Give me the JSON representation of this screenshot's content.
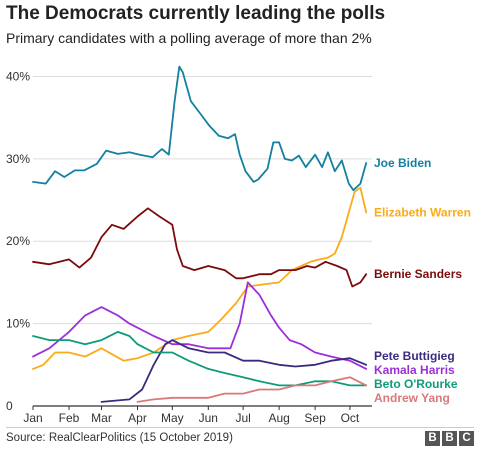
{
  "header": {
    "title": "The Democrats currently leading the polls",
    "subtitle": "Primary candidates with a polling average of more than 2%"
  },
  "footer": {
    "source": "Source: RealClearPolitics (15 October 2019)",
    "logo_letters": [
      "B",
      "B",
      "C"
    ]
  },
  "chart_data": {
    "type": "line",
    "title": "The Democrats currently leading the polls",
    "subtitle": "Primary candidates with a polling average of more than 2%",
    "xlabel": "",
    "ylabel": "",
    "x_range": [
      "2019-01-01",
      "2019-10-20"
    ],
    "x_ticks": [
      {
        "date": "2019-01-01",
        "label": "Jan"
      },
      {
        "date": "2019-02-01",
        "label": "Feb"
      },
      {
        "date": "2019-03-01",
        "label": "Mar"
      },
      {
        "date": "2019-04-01",
        "label": "Apr"
      },
      {
        "date": "2019-05-01",
        "label": "May"
      },
      {
        "date": "2019-06-01",
        "label": "Jun"
      },
      {
        "date": "2019-07-01",
        "label": "Jul"
      },
      {
        "date": "2019-08-01",
        "label": "Aug"
      },
      {
        "date": "2019-09-01",
        "label": "Sep"
      },
      {
        "date": "2019-10-01",
        "label": "Oct"
      }
    ],
    "y_ticks": [
      {
        "value": 0,
        "label": "0"
      },
      {
        "value": 10,
        "label": "10%"
      },
      {
        "value": 20,
        "label": "20%"
      },
      {
        "value": 30,
        "label": "30%"
      },
      {
        "value": 40,
        "label": "40%"
      }
    ],
    "ylim": [
      0,
      42
    ],
    "grid": true,
    "legend": "labels at right end of lines",
    "series": [
      {
        "name": "Joe Biden",
        "color": "#1380A1",
        "points": [
          [
            "2019-01-01",
            27.2
          ],
          [
            "2019-01-12",
            27.0
          ],
          [
            "2019-01-20",
            28.5
          ],
          [
            "2019-01-28",
            27.8
          ],
          [
            "2019-02-06",
            28.6
          ],
          [
            "2019-02-14",
            28.6
          ],
          [
            "2019-02-25",
            29.4
          ],
          [
            "2019-03-05",
            31.0
          ],
          [
            "2019-03-15",
            30.6
          ],
          [
            "2019-03-25",
            30.8
          ],
          [
            "2019-04-03",
            30.5
          ],
          [
            "2019-04-14",
            30.2
          ],
          [
            "2019-04-22",
            31.2
          ],
          [
            "2019-04-28",
            30.5
          ],
          [
            "2019-05-03",
            37.0
          ],
          [
            "2019-05-07",
            41.2
          ],
          [
            "2019-05-10",
            40.5
          ],
          [
            "2019-05-17",
            37.0
          ],
          [
            "2019-05-25",
            35.5
          ],
          [
            "2019-06-02",
            34.0
          ],
          [
            "2019-06-10",
            32.8
          ],
          [
            "2019-06-18",
            32.5
          ],
          [
            "2019-06-24",
            33.0
          ],
          [
            "2019-06-28",
            30.5
          ],
          [
            "2019-07-03",
            28.5
          ],
          [
            "2019-07-10",
            27.2
          ],
          [
            "2019-07-14",
            27.5
          ],
          [
            "2019-07-22",
            28.8
          ],
          [
            "2019-07-27",
            32.0
          ],
          [
            "2019-08-01",
            32.0
          ],
          [
            "2019-08-06",
            30.0
          ],
          [
            "2019-08-12",
            29.8
          ],
          [
            "2019-08-18",
            30.4
          ],
          [
            "2019-08-24",
            29.0
          ],
          [
            "2019-09-01",
            30.5
          ],
          [
            "2019-09-07",
            29.0
          ],
          [
            "2019-09-12",
            30.8
          ],
          [
            "2019-09-18",
            28.5
          ],
          [
            "2019-09-24",
            29.8
          ],
          [
            "2019-09-30",
            27.0
          ],
          [
            "2019-10-04",
            26.2
          ],
          [
            "2019-10-10",
            27.0
          ],
          [
            "2019-10-15",
            29.5
          ]
        ]
      },
      {
        "name": "Elizabeth Warren",
        "color": "#FAAB18",
        "points": [
          [
            "2019-01-01",
            4.5
          ],
          [
            "2019-01-10",
            5.0
          ],
          [
            "2019-01-20",
            6.5
          ],
          [
            "2019-02-01",
            6.5
          ],
          [
            "2019-02-15",
            6.0
          ],
          [
            "2019-03-01",
            7.0
          ],
          [
            "2019-03-20",
            5.5
          ],
          [
            "2019-04-01",
            5.8
          ],
          [
            "2019-04-15",
            6.5
          ],
          [
            "2019-05-01",
            8.0
          ],
          [
            "2019-05-15",
            8.5
          ],
          [
            "2019-06-01",
            9.0
          ],
          [
            "2019-06-12",
            10.5
          ],
          [
            "2019-06-25",
            12.5
          ],
          [
            "2019-07-05",
            14.5
          ],
          [
            "2019-07-20",
            14.8
          ],
          [
            "2019-08-01",
            15.0
          ],
          [
            "2019-08-12",
            16.5
          ],
          [
            "2019-08-20",
            17.0
          ],
          [
            "2019-08-28",
            17.5
          ],
          [
            "2019-09-05",
            17.8
          ],
          [
            "2019-09-12",
            18.0
          ],
          [
            "2019-09-18",
            18.5
          ],
          [
            "2019-09-24",
            20.5
          ],
          [
            "2019-09-30",
            23.5
          ],
          [
            "2019-10-05",
            26.0
          ],
          [
            "2019-10-10",
            26.5
          ],
          [
            "2019-10-15",
            23.5
          ]
        ]
      },
      {
        "name": "Bernie Sanders",
        "color": "#7B0B0B",
        "points": [
          [
            "2019-01-01",
            17.5
          ],
          [
            "2019-01-15",
            17.2
          ],
          [
            "2019-02-01",
            17.8
          ],
          [
            "2019-02-10",
            16.8
          ],
          [
            "2019-02-20",
            18.0
          ],
          [
            "2019-03-01",
            20.5
          ],
          [
            "2019-03-10",
            22.0
          ],
          [
            "2019-03-20",
            21.5
          ],
          [
            "2019-04-01",
            23.0
          ],
          [
            "2019-04-10",
            24.0
          ],
          [
            "2019-04-20",
            23.0
          ],
          [
            "2019-05-01",
            22.0
          ],
          [
            "2019-05-05",
            19.0
          ],
          [
            "2019-05-10",
            17.0
          ],
          [
            "2019-05-20",
            16.5
          ],
          [
            "2019-06-01",
            17.0
          ],
          [
            "2019-06-15",
            16.5
          ],
          [
            "2019-06-25",
            15.5
          ],
          [
            "2019-07-01",
            15.5
          ],
          [
            "2019-07-15",
            16.0
          ],
          [
            "2019-07-25",
            16.0
          ],
          [
            "2019-08-01",
            16.5
          ],
          [
            "2019-08-15",
            16.5
          ],
          [
            "2019-08-25",
            17.0
          ],
          [
            "2019-09-01",
            16.8
          ],
          [
            "2019-09-10",
            17.5
          ],
          [
            "2019-09-20",
            17.0
          ],
          [
            "2019-09-28",
            16.5
          ],
          [
            "2019-10-03",
            14.5
          ],
          [
            "2019-10-10",
            15.0
          ],
          [
            "2019-10-15",
            16.0
          ]
        ]
      },
      {
        "name": "Kamala Harris",
        "color": "#9B30D9",
        "points": [
          [
            "2019-01-01",
            6.0
          ],
          [
            "2019-01-15",
            7.0
          ],
          [
            "2019-02-01",
            9.0
          ],
          [
            "2019-02-15",
            11.0
          ],
          [
            "2019-03-01",
            12.0
          ],
          [
            "2019-03-15",
            11.0
          ],
          [
            "2019-03-25",
            10.0
          ],
          [
            "2019-04-01",
            9.5
          ],
          [
            "2019-04-15",
            8.5
          ],
          [
            "2019-05-01",
            7.5
          ],
          [
            "2019-05-15",
            7.5
          ],
          [
            "2019-06-01",
            7.0
          ],
          [
            "2019-06-20",
            7.0
          ],
          [
            "2019-06-28",
            10.0
          ],
          [
            "2019-07-05",
            15.0
          ],
          [
            "2019-07-15",
            13.5
          ],
          [
            "2019-07-25",
            11.0
          ],
          [
            "2019-08-01",
            9.5
          ],
          [
            "2019-08-10",
            8.0
          ],
          [
            "2019-08-20",
            7.5
          ],
          [
            "2019-09-01",
            6.5
          ],
          [
            "2019-09-15",
            6.0
          ],
          [
            "2019-10-01",
            5.5
          ],
          [
            "2019-10-15",
            4.5
          ]
        ]
      },
      {
        "name": "Pete Buttigieg",
        "color": "#3B2A7E",
        "points": [
          [
            "2019-03-01",
            0.5
          ],
          [
            "2019-03-25",
            0.8
          ],
          [
            "2019-04-05",
            2.0
          ],
          [
            "2019-04-15",
            5.0
          ],
          [
            "2019-04-25",
            7.5
          ],
          [
            "2019-05-01",
            8.0
          ],
          [
            "2019-05-15",
            7.0
          ],
          [
            "2019-06-01",
            6.5
          ],
          [
            "2019-06-15",
            6.5
          ],
          [
            "2019-07-01",
            5.5
          ],
          [
            "2019-07-15",
            5.5
          ],
          [
            "2019-08-01",
            5.0
          ],
          [
            "2019-08-15",
            4.8
          ],
          [
            "2019-09-01",
            5.0
          ],
          [
            "2019-09-15",
            5.5
          ],
          [
            "2019-10-01",
            5.8
          ],
          [
            "2019-10-15",
            5.0
          ]
        ]
      },
      {
        "name": "Beto O'Rourke",
        "color": "#0F9B77",
        "points": [
          [
            "2019-01-01",
            8.5
          ],
          [
            "2019-01-15",
            8.0
          ],
          [
            "2019-02-01",
            8.0
          ],
          [
            "2019-02-15",
            7.5
          ],
          [
            "2019-03-01",
            8.0
          ],
          [
            "2019-03-15",
            9.0
          ],
          [
            "2019-03-25",
            8.5
          ],
          [
            "2019-04-01",
            7.5
          ],
          [
            "2019-04-15",
            6.5
          ],
          [
            "2019-05-01",
            6.5
          ],
          [
            "2019-05-15",
            5.5
          ],
          [
            "2019-06-01",
            4.5
          ],
          [
            "2019-06-15",
            4.0
          ],
          [
            "2019-07-01",
            3.5
          ],
          [
            "2019-07-15",
            3.0
          ],
          [
            "2019-08-01",
            2.5
          ],
          [
            "2019-08-15",
            2.5
          ],
          [
            "2019-09-01",
            3.0
          ],
          [
            "2019-09-15",
            3.0
          ],
          [
            "2019-10-01",
            2.5
          ],
          [
            "2019-10-15",
            2.5
          ]
        ]
      },
      {
        "name": "Andrew Yang",
        "color": "#D97A7A",
        "points": [
          [
            "2019-04-01",
            0.5
          ],
          [
            "2019-04-15",
            0.8
          ],
          [
            "2019-05-01",
            1.0
          ],
          [
            "2019-05-15",
            1.0
          ],
          [
            "2019-06-01",
            1.0
          ],
          [
            "2019-06-15",
            1.5
          ],
          [
            "2019-07-01",
            1.5
          ],
          [
            "2019-07-15",
            2.0
          ],
          [
            "2019-08-01",
            2.0
          ],
          [
            "2019-08-15",
            2.5
          ],
          [
            "2019-09-01",
            2.5
          ],
          [
            "2019-09-15",
            3.0
          ],
          [
            "2019-10-01",
            3.5
          ],
          [
            "2019-10-08",
            3.0
          ],
          [
            "2019-10-15",
            2.5
          ]
        ]
      }
    ]
  }
}
